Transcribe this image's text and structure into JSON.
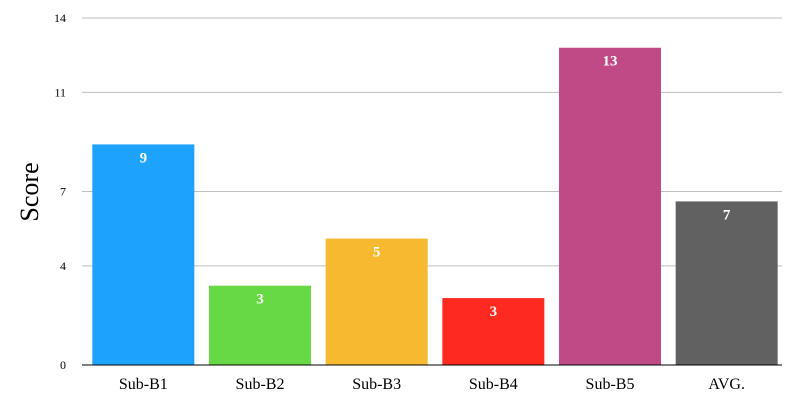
{
  "chart_data": {
    "type": "bar",
    "ylabel": "Score",
    "xlabel": "",
    "categories": [
      "Sub-B1",
      "Sub-B2",
      "Sub-B3",
      "Sub-B4",
      "Sub-B5",
      "AVG."
    ],
    "values": [
      8.9,
      3.2,
      5.1,
      2.7,
      12.8,
      6.6
    ],
    "data_labels": [
      "9",
      "3",
      "5",
      "3",
      "13",
      "7"
    ],
    "colors": [
      "#1ea3fc",
      "#66d944",
      "#f7b92f",
      "#ff2a1f",
      "#bf4a86",
      "#616161"
    ],
    "yticks": [
      0,
      4,
      7,
      11,
      14
    ],
    "ylim": [
      0,
      14
    ],
    "grid": true
  }
}
